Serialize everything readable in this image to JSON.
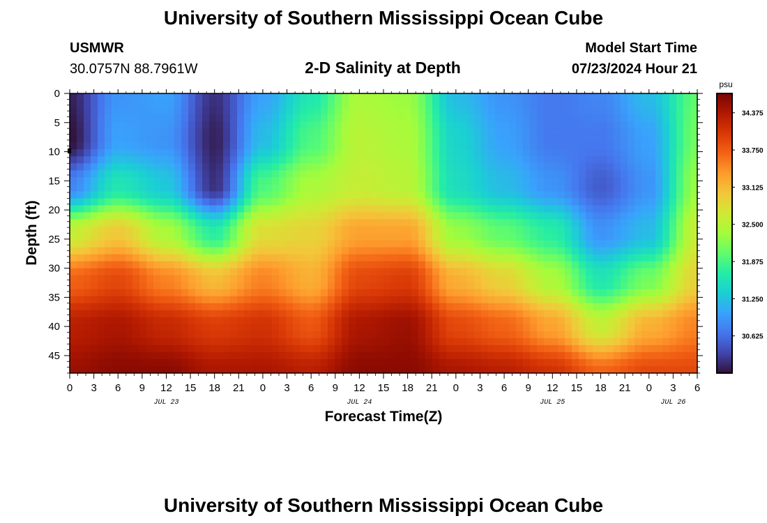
{
  "header": {
    "title": "University of Southern Mississippi Ocean Cube",
    "station_name": "USMWR",
    "station_coords": "30.0757N  88.7961W",
    "plot_title": "2-D Salinity at Depth",
    "model_start_label": "Model Start Time",
    "model_start_value": "07/23/2024 Hour 21"
  },
  "footer": {
    "title": "University of Southern Mississippi Ocean Cube"
  },
  "colorbar": {
    "unit": "psu",
    "min": 30.0,
    "max": 34.7,
    "ticks": [
      "34.375",
      "33.750",
      "33.125",
      "32.500",
      "31.875",
      "31.250",
      "30.625"
    ],
    "colors": [
      "#30123b",
      "#4145ab",
      "#4675ed",
      "#39a2fc",
      "#1bcfd4",
      "#24eca6",
      "#61fc6c",
      "#a4fc3b",
      "#d1e834",
      "#f3c63a",
      "#fe9b2d",
      "#f36315",
      "#d93806",
      "#b11901",
      "#7a0402"
    ]
  },
  "chart_data": {
    "type": "heatmap",
    "title": "2-D Salinity at Depth",
    "xlabel": "Forecast Time(Z)",
    "ylabel": "Depth (ft)",
    "x_unit": "hours since Jul 23 00Z",
    "x_range": [
      0,
      78
    ],
    "y_range": [
      0,
      48
    ],
    "x_tick_values": [
      0,
      3,
      6,
      9,
      12,
      15,
      18,
      21,
      24,
      27,
      30,
      33,
      36,
      39,
      42,
      45,
      48,
      51,
      54,
      57,
      60,
      63,
      66,
      69,
      72,
      75,
      78
    ],
    "x_tick_labels": [
      "0",
      "3",
      "6",
      "9",
      "12",
      "15",
      "18",
      "21",
      "0",
      "3",
      "6",
      "9",
      "12",
      "15",
      "18",
      "21",
      "0",
      "3",
      "6",
      "9",
      "12",
      "15",
      "18",
      "21",
      "0",
      "3",
      "6"
    ],
    "y_ticks": [
      0,
      5,
      10,
      15,
      20,
      25,
      30,
      35,
      40,
      45
    ],
    "y_tick_labels": [
      "0",
      "5",
      "10",
      "15",
      "20",
      "25",
      "30",
      "35",
      "40",
      "45"
    ],
    "date_labels": [
      {
        "hour": 12,
        "label": "JUL 23"
      },
      {
        "hour": 36,
        "label": "JUL 24"
      },
      {
        "hour": 60,
        "label": "JUL 25"
      },
      {
        "hour": 75,
        "label": "JUL 26"
      }
    ],
    "value_unit": "psu",
    "value_range": [
      30.0,
      34.7
    ],
    "grid_hours": [
      0,
      6,
      12,
      18,
      24,
      30,
      36,
      42,
      48,
      54,
      60,
      66,
      72,
      78
    ],
    "grid_depths": [
      0,
      8,
      16,
      24,
      32,
      40,
      48
    ],
    "values": [
      [
        30.1,
        30.0,
        30.8,
        32.6,
        33.7,
        34.3,
        34.5
      ],
      [
        30.9,
        31.0,
        31.6,
        33.0,
        33.9,
        34.4,
        34.6
      ],
      [
        31.0,
        30.9,
        31.3,
        32.4,
        33.5,
        34.2,
        34.6
      ],
      [
        30.2,
        30.1,
        30.2,
        31.7,
        33.1,
        34.0,
        34.4
      ],
      [
        31.0,
        31.2,
        31.9,
        32.8,
        33.5,
        34.1,
        34.4
      ],
      [
        31.6,
        31.9,
        32.4,
        32.9,
        33.2,
        33.8,
        34.3
      ],
      [
        32.4,
        32.5,
        32.6,
        33.3,
        33.9,
        34.4,
        34.6
      ],
      [
        32.3,
        32.4,
        32.5,
        33.3,
        34.0,
        34.5,
        34.6
      ],
      [
        31.2,
        31.4,
        31.5,
        32.3,
        33.2,
        33.9,
        34.4
      ],
      [
        30.9,
        31.0,
        31.2,
        32.0,
        32.9,
        33.7,
        34.3
      ],
      [
        30.7,
        30.7,
        30.9,
        31.7,
        32.4,
        33.3,
        34.1
      ],
      [
        30.8,
        30.7,
        30.5,
        30.9,
        31.6,
        32.6,
        33.7
      ],
      [
        31.2,
        31.0,
        30.9,
        31.2,
        32.1,
        33.2,
        33.9
      ],
      [
        32.0,
        32.1,
        32.3,
        32.6,
        32.9,
        33.5,
        33.9
      ]
    ]
  }
}
